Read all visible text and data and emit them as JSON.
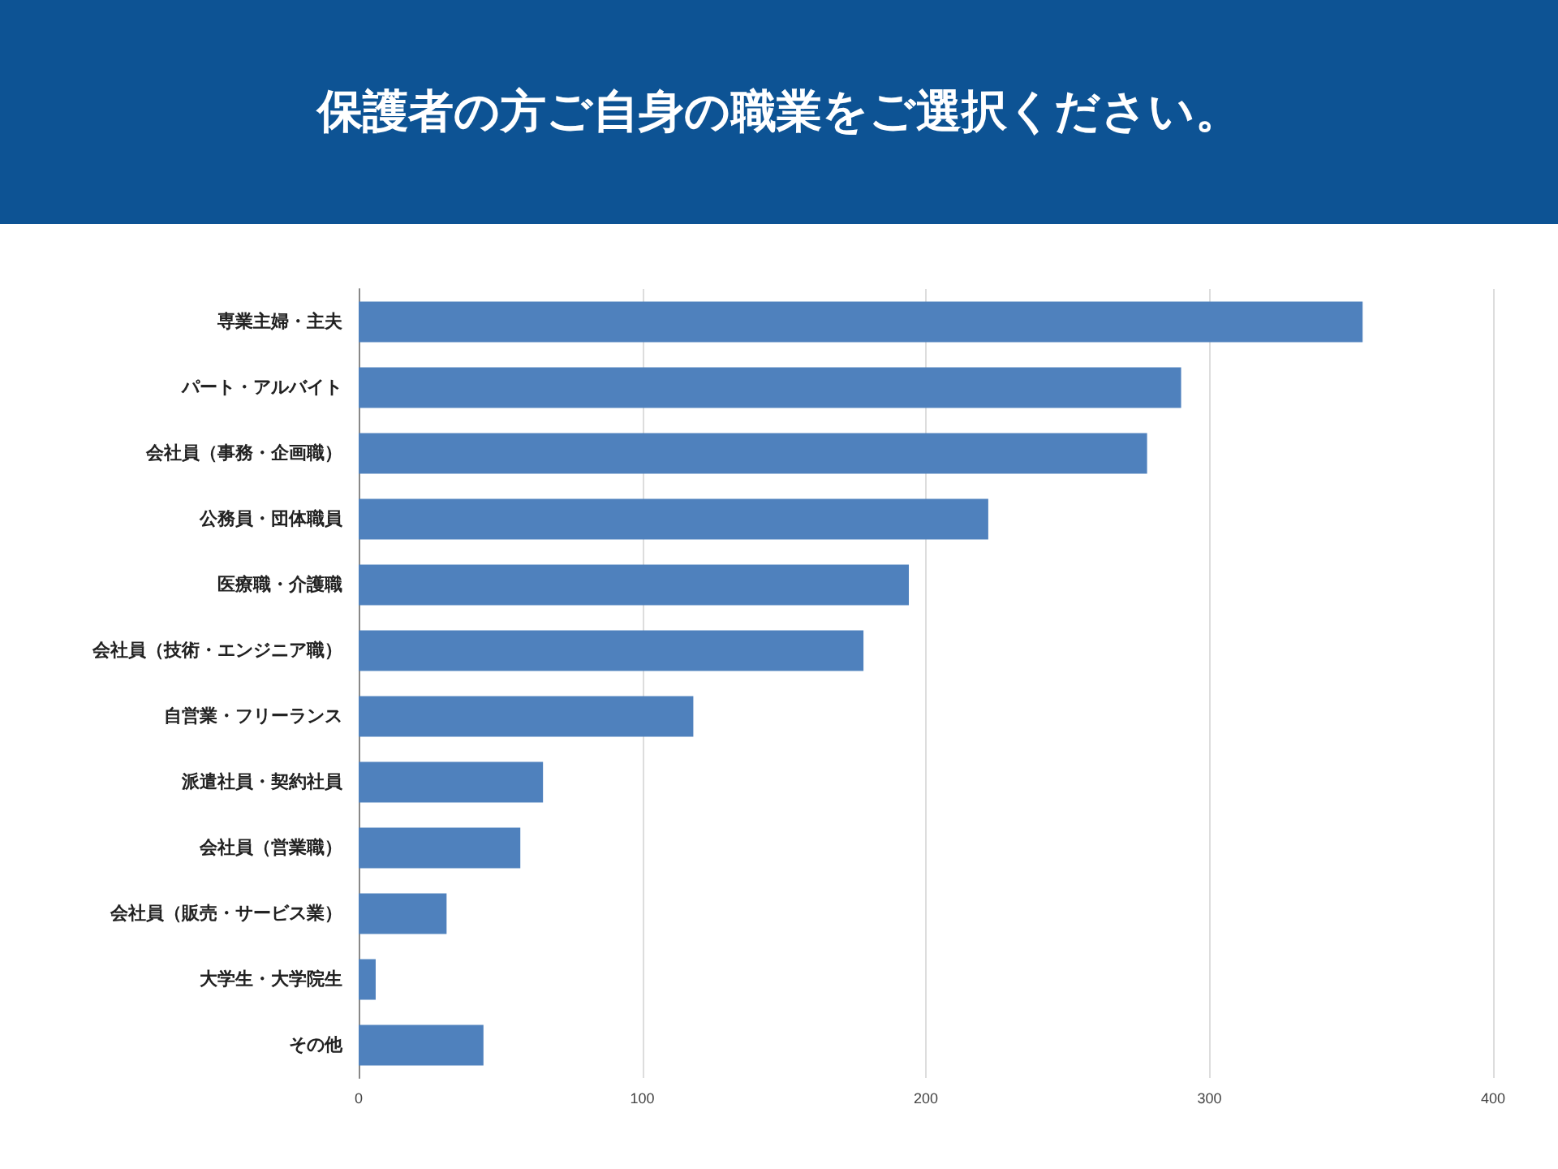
{
  "chart_data": {
    "type": "bar",
    "orientation": "horizontal",
    "title": "保護者の方ご自身の職業をご選択ください。",
    "categories": [
      "専業主婦・主夫",
      "パート・アルバイト",
      "会社員（事務・企画職）",
      "公務員・団体職員",
      "医療職・介護職",
      "会社員（技術・エンジニア職）",
      "自営業・フリーランス",
      "派遣社員・契約社員",
      "会社員（営業職）",
      "会社員（販売・サービス業）",
      "大学生・大学院生",
      "その他"
    ],
    "values": [
      354,
      290,
      278,
      222,
      194,
      178,
      118,
      65,
      57,
      31,
      6,
      44
    ],
    "color": "#4f81bd",
    "xlim": [
      0,
      400
    ],
    "xticks": [
      0,
      100,
      200,
      300,
      400
    ],
    "grid": "x"
  }
}
